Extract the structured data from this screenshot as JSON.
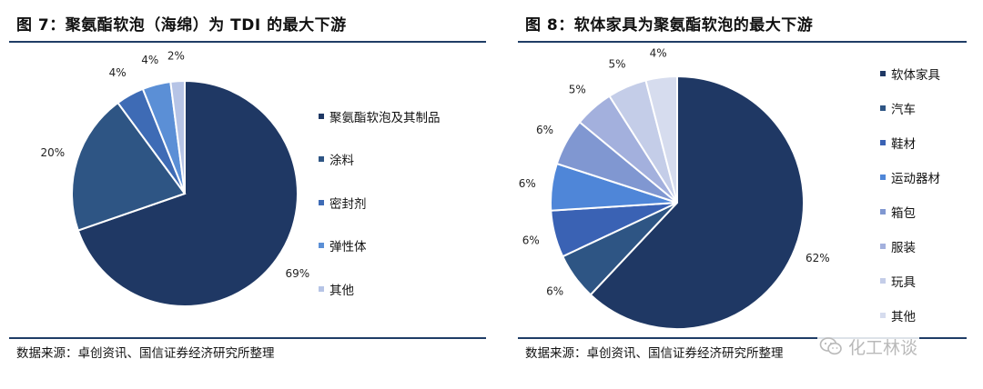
{
  "chart_data": [
    {
      "type": "pie",
      "title": "图 7：聚氨酯软泡（海绵）为 TDI 的最大下游",
      "categories": [
        "聚氨酯软泡及其制品",
        "涂料",
        "密封剂",
        "弹性体",
        "其他"
      ],
      "values": [
        69,
        20,
        4,
        4,
        2
      ],
      "labels": [
        "69%",
        "20%",
        "4%",
        "4%",
        "2%"
      ],
      "colors": [
        "#1f3864",
        "#2e5584",
        "#3e6bb5",
        "#5b8fd6",
        "#b6c4e6"
      ],
      "legend_position": "right",
      "source": "数据来源：卓创资讯、国信证券经济研究所整理"
    },
    {
      "type": "pie",
      "title": "图 8：软体家具为聚氨酯软泡的最大下游",
      "categories": [
        "软体家具",
        "汽车",
        "鞋材",
        "运动器材",
        "箱包",
        "服装",
        "玩具",
        "其他"
      ],
      "values": [
        62,
        6,
        6,
        6,
        6,
        5,
        5,
        4
      ],
      "labels": [
        "62%",
        "6%",
        "6%",
        "6%",
        "6%",
        "5%",
        "5%",
        "4%"
      ],
      "colors": [
        "#1f3864",
        "#2e5584",
        "#3a62b4",
        "#4f86d8",
        "#8097d1",
        "#a3b0dd",
        "#c4cde8",
        "#d6dcee"
      ],
      "legend_position": "right",
      "source": "数据来源：卓创资讯、国信证券经济研究所整理"
    }
  ],
  "watermark": {
    "icon": "wechat-icon",
    "text": "化工林谈"
  }
}
